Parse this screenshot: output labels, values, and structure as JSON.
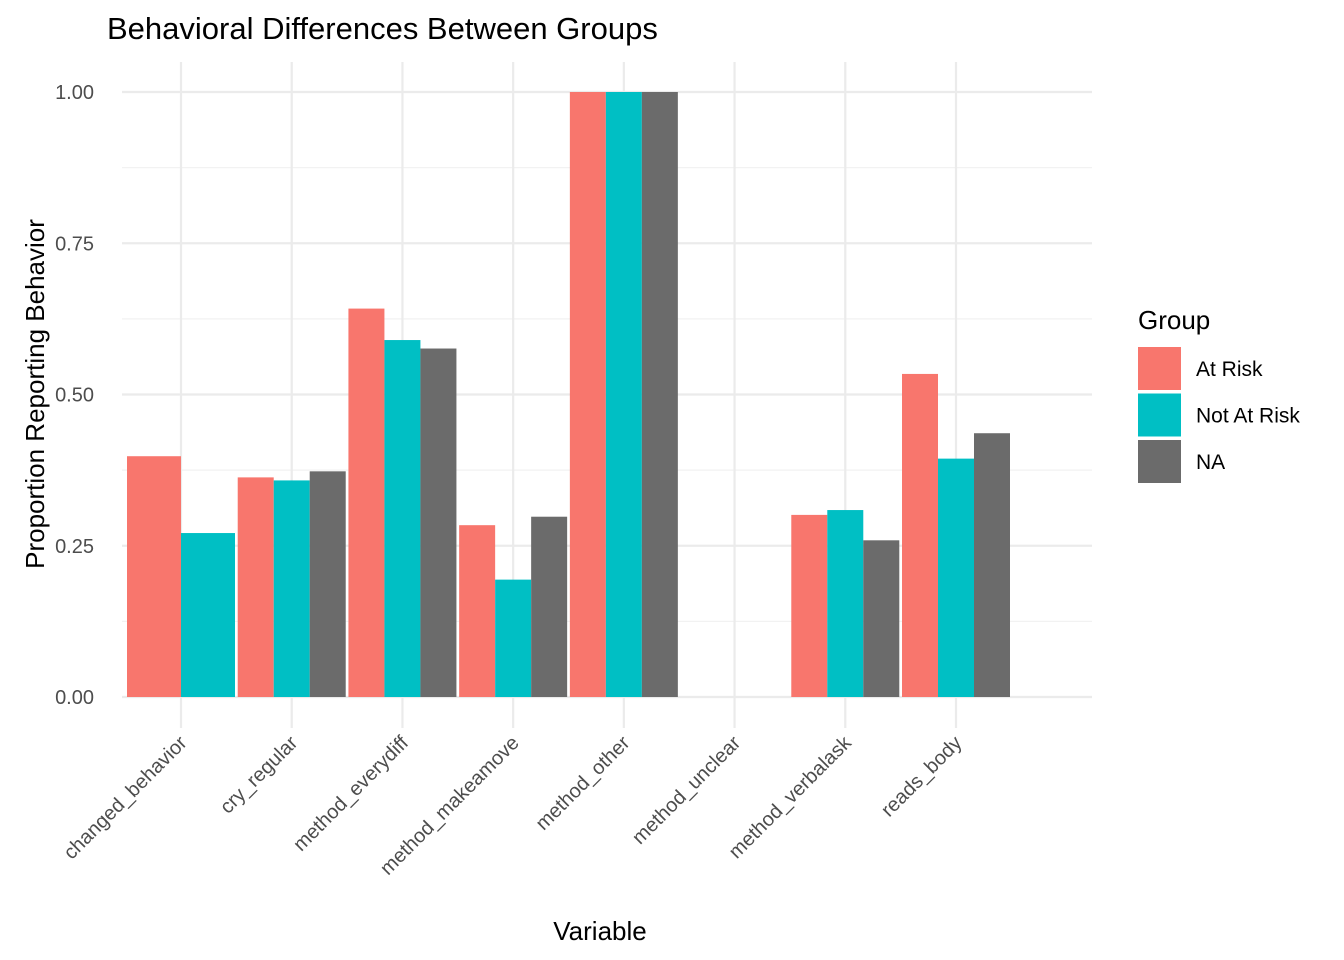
{
  "chart_data": {
    "type": "bar",
    "title": "Behavioral Differences Between Groups",
    "xlabel": "Variable",
    "ylabel": "Proportion Reporting Behavior",
    "ylim": [
      0,
      1
    ],
    "y_ticks": [
      "0.00",
      "0.25",
      "0.50",
      "0.75",
      "1.00"
    ],
    "grid": true,
    "legend_position": "right",
    "legend_title": "Group",
    "categories": [
      "changed_behavior",
      "cry_regular",
      "method_everydiff",
      "method_makeamove",
      "method_other",
      "method_unclear",
      "method_verbalask",
      "reads_body"
    ],
    "series": [
      {
        "name": "At Risk",
        "color": "#F8766D",
        "values": [
          0.398,
          0.363,
          0.642,
          0.284,
          1.0,
          null,
          0.301,
          0.534
        ]
      },
      {
        "name": "Not At Risk",
        "color": "#00BFC4",
        "values": [
          0.271,
          0.358,
          0.59,
          0.194,
          1.0,
          null,
          0.309,
          0.394
        ]
      },
      {
        "name": "NA",
        "color": "#6B6B6B",
        "values": [
          null,
          0.373,
          0.576,
          0.298,
          1.0,
          null,
          0.259,
          0.436
        ]
      }
    ]
  }
}
